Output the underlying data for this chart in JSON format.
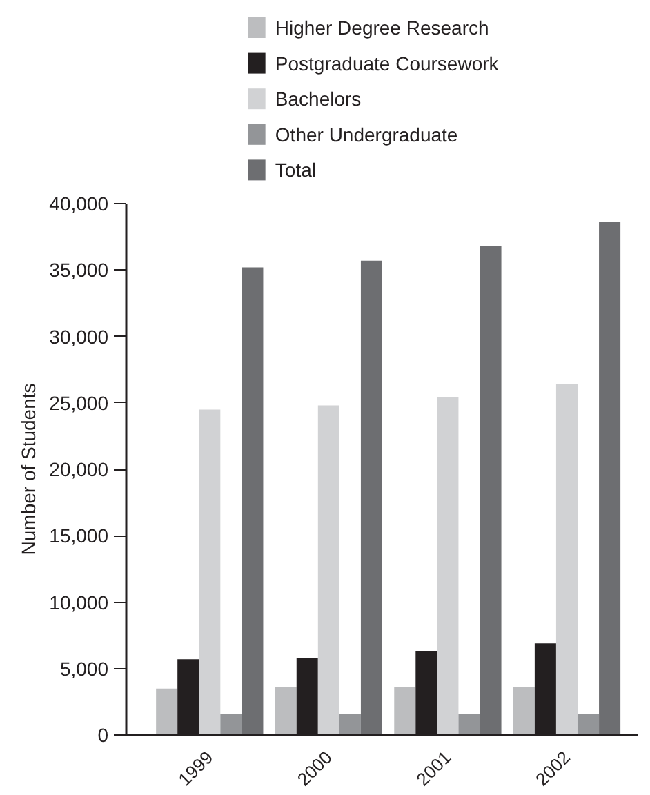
{
  "chart_data": {
    "type": "bar",
    "categories": [
      "1999",
      "2000",
      "2001",
      "2002"
    ],
    "series": [
      {
        "name": "Higher Degree Research",
        "color": "#bcbdbf",
        "values": [
          3500,
          3600,
          3600,
          3600
        ]
      },
      {
        "name": "Postgraduate Coursework",
        "color": "#231f20",
        "values": [
          5700,
          5800,
          6300,
          6900
        ]
      },
      {
        "name": "Bachelors",
        "color": "#d1d2d4",
        "values": [
          24500,
          24800,
          25400,
          26400
        ]
      },
      {
        "name": "Other Undergraduate",
        "color": "#939598",
        "values": [
          1600,
          1600,
          1600,
          1600
        ]
      },
      {
        "name": "Total",
        "color": "#6d6e71",
        "values": [
          35200,
          35700,
          36800,
          38600
        ]
      }
    ],
    "ylabel": "Number of Students",
    "ylim": [
      0,
      40000
    ],
    "yticks": [
      0,
      {
        "value": 5000,
        "label": "5,000"
      },
      {
        "value": 10000,
        "label": "10,000"
      },
      {
        "value": 15000,
        "label": "15,000"
      },
      {
        "value": 20000,
        "label": "20,000"
      },
      {
        "value": 25000,
        "label": "25,000"
      },
      {
        "value": 30000,
        "label": "30,000"
      },
      {
        "value": 35000,
        "label": "35,000"
      },
      {
        "value": 40000,
        "label": "40,000"
      }
    ],
    "grid": false,
    "legend": "top left"
  }
}
